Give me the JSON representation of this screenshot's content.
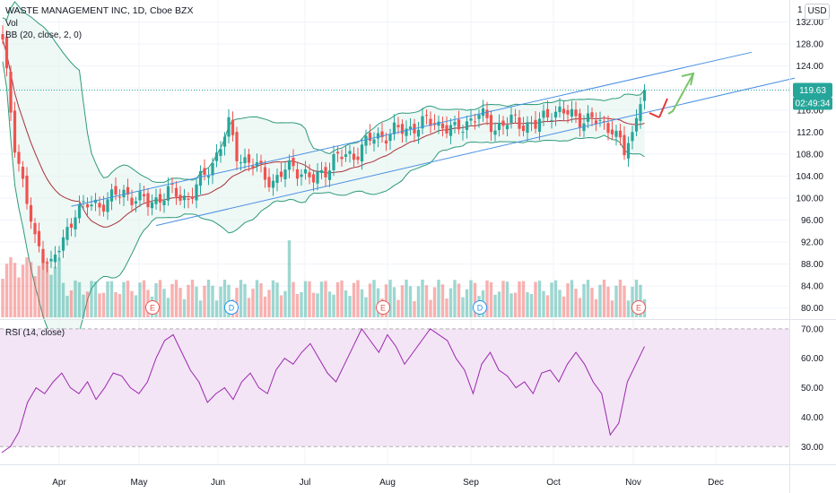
{
  "header": {
    "title": "WASTE MANAGEMENT INC, 1D, Cboe BZX",
    "vol_label": "Vol",
    "bb_label": "BB (20, close, 2, 0)",
    "currency": "USD",
    "top_tick": "1"
  },
  "price_axis": {
    "ticks": [
      "132.00",
      "128.00",
      "124.00",
      "120.00",
      "116.00",
      "112.00",
      "108.00",
      "104.00",
      "100.00",
      "96.00",
      "92.00",
      "88.00",
      "84.00",
      "80.00"
    ],
    "last_price": "119.63",
    "countdown": "02:49:34"
  },
  "rsi": {
    "label": "RSI (14, close)",
    "ticks": [
      "70.00",
      "60.00",
      "50.00",
      "40.00",
      "30.00"
    ]
  },
  "time_axis": {
    "months": [
      "Apr",
      "May",
      "Jun",
      "Jul",
      "Aug",
      "Sep",
      "Oct",
      "Nov",
      "Dec"
    ]
  },
  "earnings_markers": [
    "E",
    "D",
    "E",
    "D",
    "E"
  ],
  "colors": {
    "up": "#26a69a",
    "down": "#ef5350",
    "bb": "#2e9a7b",
    "mid": "#a8323a",
    "channel": "#4a90e2",
    "rsi": "#9c27b0",
    "rsi_band": "#f3e5f5",
    "arrow_up": "#7cc46b",
    "arrow_down": "#e53935"
  },
  "chart_data": [
    {
      "type": "candlestick",
      "title": "WASTE MANAGEMENT INC, 1D, Cboe BZX",
      "ylim": [
        78,
        136
      ],
      "x_months": [
        "Apr",
        "May",
        "Jun",
        "Jul",
        "Aug",
        "Sep",
        "Oct",
        "Nov",
        "Dec"
      ],
      "close_anchors": [
        [
          0,
          128
        ],
        [
          3,
          110
        ],
        [
          8,
          92
        ],
        [
          12,
          88
        ],
        [
          15,
          92
        ],
        [
          18,
          98
        ],
        [
          24,
          99
        ],
        [
          30,
          101
        ],
        [
          36,
          99
        ],
        [
          41,
          101
        ],
        [
          46,
          100
        ],
        [
          50,
          104
        ],
        [
          53,
          108
        ],
        [
          56,
          113
        ],
        [
          58,
          108
        ],
        [
          62,
          106
        ],
        [
          67,
          103
        ],
        [
          72,
          106
        ],
        [
          77,
          103
        ],
        [
          82,
          107
        ],
        [
          87,
          108
        ],
        [
          92,
          111
        ],
        [
          97,
          112
        ],
        [
          102,
          113
        ],
        [
          107,
          114
        ],
        [
          112,
          112
        ],
        [
          115,
          114
        ],
        [
          118,
          115
        ],
        [
          122,
          113
        ],
        [
          127,
          114
        ],
        [
          132,
          113
        ],
        [
          136,
          116
        ],
        [
          141,
          115
        ],
        [
          146,
          114
        ],
        [
          151,
          113
        ],
        [
          154,
          108
        ],
        [
          156,
          112
        ],
        [
          159,
          119.6
        ]
      ],
      "last_close": 119.63,
      "bollinger": {
        "period": 20,
        "stddev": 2
      }
    },
    {
      "type": "line",
      "title": "RSI (14, close)",
      "ylim": [
        24,
        73
      ],
      "bands": [
        30,
        70
      ],
      "values": [
        28,
        30,
        35,
        45,
        50,
        48,
        52,
        55,
        50,
        48,
        52,
        46,
        50,
        55,
        54,
        50,
        48,
        52,
        60,
        66,
        68,
        62,
        56,
        52,
        45,
        48,
        50,
        46,
        52,
        55,
        50,
        48,
        56,
        60,
        58,
        62,
        65,
        60,
        55,
        52,
        58,
        64,
        70,
        66,
        62,
        68,
        64,
        58,
        62,
        66,
        70,
        68,
        66,
        60,
        56,
        48,
        58,
        62,
        56,
        54,
        50,
        52,
        48,
        55,
        56,
        52,
        58,
        62,
        58,
        52,
        48,
        34,
        38,
        52,
        58,
        64
      ]
    }
  ]
}
